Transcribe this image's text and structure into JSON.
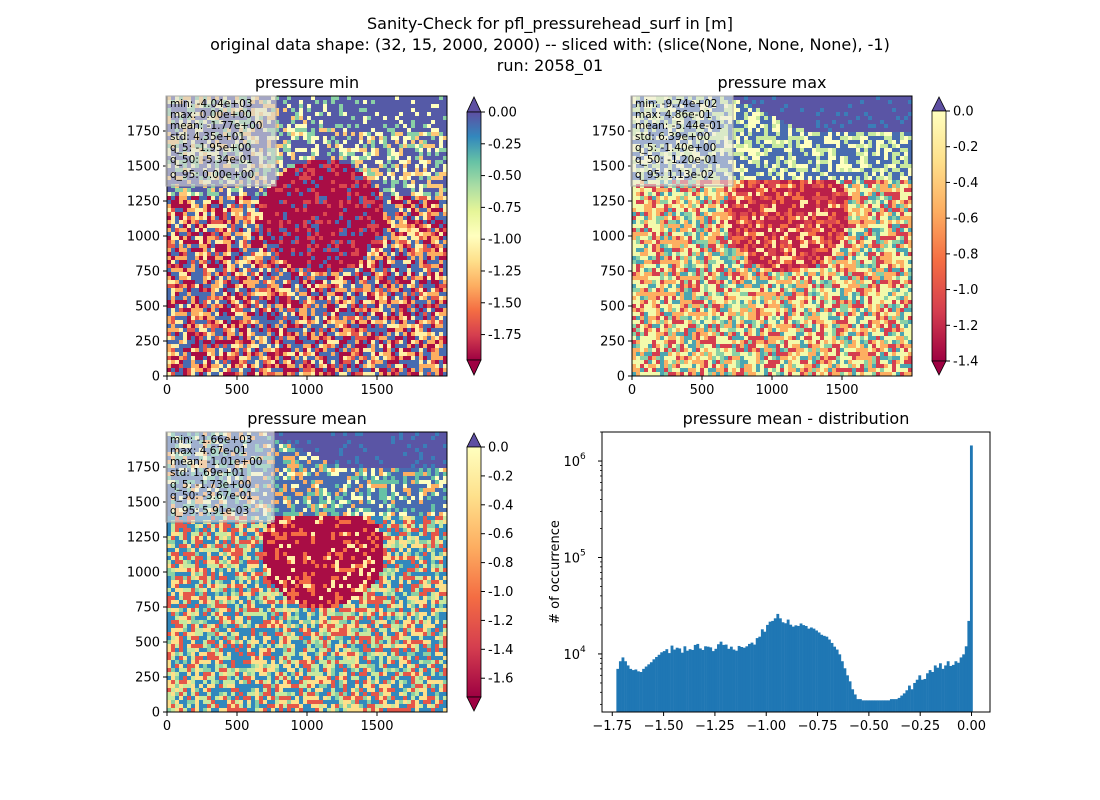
{
  "figure": {
    "title_lines": [
      "Sanity-Check for pfl_pressurehead_surf in [m]",
      "original data shape: (32, 15, 2000, 2000) -- sliced with: (slice(None, None, None), -1)",
      "run: 2058_01"
    ]
  },
  "chart_data": [
    {
      "type": "heatmap",
      "title": "pressure min",
      "xlim": [
        0,
        2000
      ],
      "ylim": [
        0,
        2000
      ],
      "xticks": [
        "0",
        "500",
        "1000",
        "1500"
      ],
      "yticks": [
        "0",
        "250",
        "500",
        "750",
        "1000",
        "1250",
        "1500",
        "1750"
      ],
      "colormap": "Spectral",
      "colorbar": {
        "range": [
          -1.95,
          0.0
        ],
        "ticks": [
          "0.00",
          "-0.25",
          "-0.50",
          "-0.75",
          "-1.00",
          "-1.25",
          "-1.50",
          "-1.75"
        ],
        "extend": "both"
      },
      "stats_lines": [
        "min: -4.04e+03",
        "max: 0.00e+00",
        "mean: -1.77e+00",
        "std: 4.35e+01",
        "q_5: -1.95e+00",
        "q_50: -5.34e-01",
        "q_95: 0.00e+00"
      ]
    },
    {
      "type": "heatmap",
      "title": "pressure max",
      "xlim": [
        0,
        2000
      ],
      "ylim": [
        0,
        2000
      ],
      "xticks": [
        "0",
        "500",
        "1000",
        "1500"
      ],
      "yticks": [
        "0",
        "250",
        "500",
        "750",
        "1000",
        "1250",
        "1500",
        "1750"
      ],
      "colormap": "Spectral",
      "colorbar": {
        "range": [
          -1.4,
          0.0
        ],
        "ticks": [
          "0.0",
          "-0.2",
          "-0.4",
          "-0.6",
          "-0.8",
          "-1.0",
          "-1.2",
          "-1.4"
        ],
        "extend": "both"
      },
      "stats_lines": [
        "min: -9.74e+02",
        "max: 4.86e-01",
        "mean: -5.44e-01",
        "std: 6.39e+00",
        "q_5: -1.40e+00",
        "q_50: -1.20e-01",
        "q_95: 1.13e-02"
      ]
    },
    {
      "type": "heatmap",
      "title": "pressure mean",
      "xlim": [
        0,
        2000
      ],
      "ylim": [
        0,
        2000
      ],
      "xticks": [
        "0",
        "500",
        "1000",
        "1500"
      ],
      "yticks": [
        "0",
        "250",
        "500",
        "750",
        "1000",
        "1250",
        "1500",
        "1750"
      ],
      "colormap": "Spectral",
      "colorbar": {
        "range": [
          -1.73,
          0.0
        ],
        "ticks": [
          "0.0",
          "-0.2",
          "-0.4",
          "-0.6",
          "-0.8",
          "-1.0",
          "-1.2",
          "-1.4",
          "-1.6"
        ],
        "extend": "both"
      },
      "stats_lines": [
        "min: -1.66e+03",
        "max: 4.67e-01",
        "mean: -1.01e+00",
        "std: 1.69e+01",
        "q_5: -1.73e+00",
        "q_50: -3.67e-01",
        "q_95: 5.91e-03"
      ]
    },
    {
      "type": "bar",
      "title": "pressure mean - distribution",
      "ylabel": "# of occurrence",
      "xlabel": "",
      "yscale": "log",
      "xlim": [
        -1.8,
        0.09
      ],
      "ylim": [
        2500,
        2000000
      ],
      "xticks": [
        "-1.75",
        "-1.50",
        "-1.25",
        "-1.00",
        "-0.75",
        "-0.50",
        "-0.25",
        "0.00"
      ],
      "yticks": [
        "10^4",
        "10^5",
        "10^6"
      ],
      "color": "#1f77b4",
      "bin_range": [
        -1.73,
        0.005
      ],
      "values": [
        7000,
        8400,
        9200,
        8400,
        7600,
        7000,
        6800,
        6900,
        6600,
        6500,
        7000,
        7400,
        7800,
        8200,
        8800,
        9300,
        9800,
        10400,
        10700,
        11200,
        10200,
        12200,
        11100,
        11600,
        11400,
        10300,
        12000,
        10800,
        11200,
        11000,
        12400,
        12700,
        11400,
        11000,
        12000,
        11900,
        11700,
        10700,
        11300,
        12600,
        13400,
        12400,
        12500,
        11300,
        11900,
        11100,
        10800,
        12100,
        11800,
        11600,
        12000,
        12700,
        13100,
        12500,
        14600,
        15100,
        18000,
        17000,
        20000,
        21600,
        22000,
        23400,
        26000,
        23400,
        21300,
        20800,
        22700,
        20100,
        19200,
        19800,
        19500,
        20700,
        19900,
        19500,
        18300,
        18800,
        18300,
        17500,
        16700,
        15800,
        15400,
        15100,
        14100,
        13000,
        11900,
        11100,
        9900,
        8400,
        7100,
        6000,
        5200,
        4300,
        3800,
        3400,
        3400,
        3300,
        3300,
        3300,
        3300,
        3300,
        3300,
        3300,
        3300,
        3300,
        3300,
        3300,
        3400,
        3400,
        3400,
        3500,
        3700,
        3900,
        4200,
        4700,
        4300,
        5000,
        5400,
        6000,
        5400,
        5500,
        6300,
        6800,
        6500,
        7600,
        7200,
        8000,
        7000,
        7600,
        8400,
        7500,
        7700,
        8400,
        8100,
        9200,
        9900,
        12000,
        22000,
        1450000
      ]
    }
  ]
}
